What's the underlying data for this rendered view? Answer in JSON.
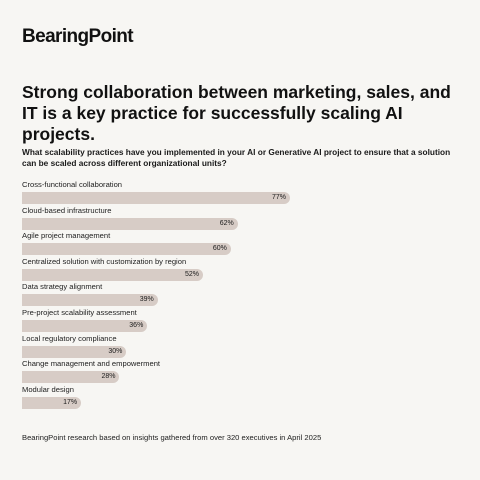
{
  "brand": {
    "logo_text": "BearingPoint"
  },
  "headline": "Strong collaboration between marketing, sales, and IT is a key practice for successfully scaling AI projects.",
  "question": "What scalability practices have you implemented in your AI or Generative AI project to ensure that a solution can be scaled across different organizational units?",
  "footer": "BearingPoint research based on insights gathered from over 320 executives in April 2025",
  "colors": {
    "bar": "#d7ccc6",
    "background": "#f7f6f3",
    "text": "#1a1a1a"
  },
  "chart_data": {
    "type": "bar",
    "orientation": "horizontal",
    "categories": [
      "Cross-functional collaboration",
      "Cloud-based infrastructure",
      "Agile project management",
      "Centralized solution with customization by region",
      "Data strategy alignment",
      "Pre-project scalability assessment",
      "Local regulatory compliance",
      "Change management and empowerment",
      "Modular design"
    ],
    "values": [
      77,
      62,
      60,
      52,
      39,
      36,
      30,
      28,
      17
    ],
    "value_labels": [
      "77%",
      "62%",
      "60%",
      "52%",
      "39%",
      "36%",
      "30%",
      "28%",
      "17%"
    ],
    "unit": "%",
    "xlim": [
      0,
      77
    ],
    "grid": false
  }
}
